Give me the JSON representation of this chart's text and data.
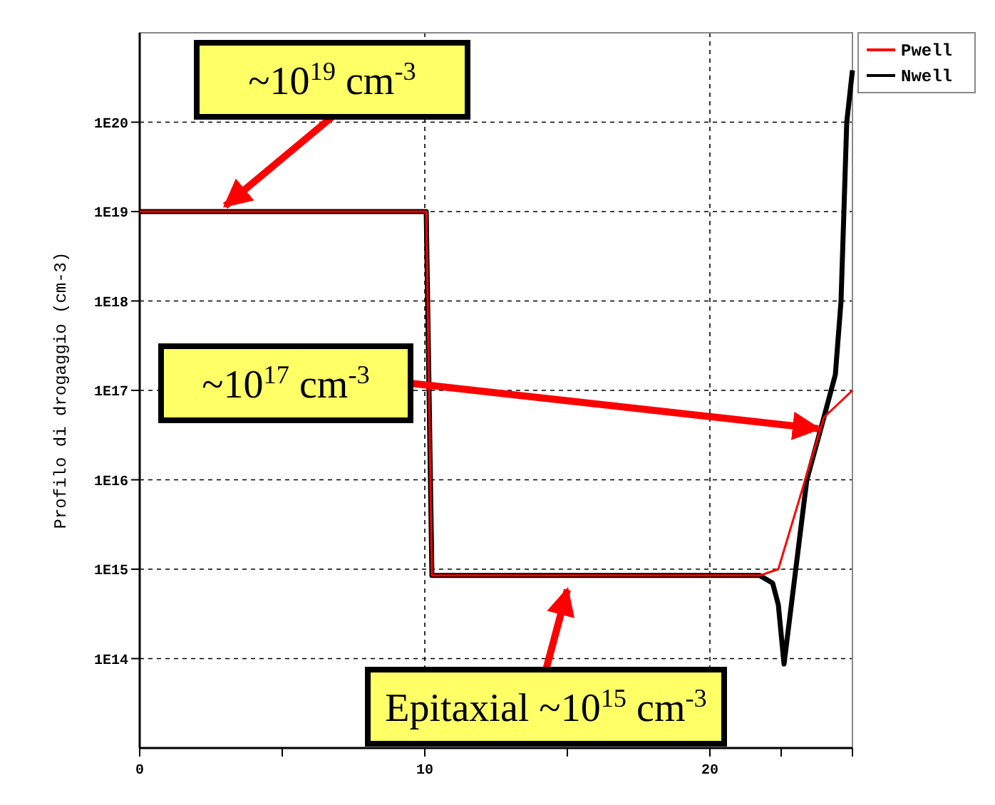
{
  "chart_data": {
    "type": "line",
    "ylabel": "Profilo di drogaggio (cm-3)",
    "log": true,
    "grid": true,
    "legend": "top right",
    "line_style": "solid",
    "marker": "none",
    "xlim": [
      0,
      25
    ],
    "xticks": [
      0,
      {
        "value": 5,
        "label": null
      },
      10,
      {
        "value": 15,
        "label": null
      },
      20,
      {
        "value": 22.5,
        "label": null
      },
      {
        "value": 25,
        "label": null
      }
    ],
    "ylim": [
      10000000000000.0,
      1e+21
    ],
    "yticks": [
      {
        "value": 100000000000000.0,
        "label": "1E14"
      },
      {
        "value": 1000000000000000.0,
        "label": "1E15"
      },
      {
        "value": 1e+16,
        "label": "1E16"
      },
      {
        "value": 1e+17,
        "label": "1E17"
      },
      {
        "value": 1e+18,
        "label": "1E18"
      },
      {
        "value": 1e+19,
        "label": "1E19"
      },
      {
        "value": 1e+20,
        "label": "1E20"
      }
    ],
    "series": [
      {
        "name": "Pwell",
        "color": "#ff0000",
        "x": [
          0,
          10.05,
          10.25,
          21.75,
          22.4,
          24.0,
          25
        ],
        "values": [
          1e+19,
          1e+19,
          850000000000000.0,
          850000000000000.0,
          1000000000000000.0,
          5e+16,
          1e+17
        ]
      },
      {
        "name": "Nwell",
        "color": "#000000",
        "x": [
          0,
          10.05,
          10.25,
          21.75,
          22.2,
          22.4,
          22.6,
          23.4,
          24.0,
          24.4,
          24.6,
          24.8,
          25
        ],
        "values": [
          1e+19,
          1e+19,
          850000000000000.0,
          850000000000000.0,
          700000000000000.0,
          400000000000000.0,
          87000000000000.0,
          1e+16,
          5e+16,
          1.5e+17,
          1e+18,
          1e+20,
          3.8e+20
        ]
      }
    ],
    "annotations": [
      {
        "text": "~10$^{19}$ cm$^{-3}$",
        "x": 3,
        "y": 1e+19
      },
      {
        "text": "~10$^{17}$ cm$^{-3}$",
        "x": 24.0,
        "y": 5e+16
      },
      {
        "text": "Epitaxial ~10$^{15}$ cm$^{-3}$",
        "x": 15,
        "y": 850000000000000.0
      }
    ]
  }
}
